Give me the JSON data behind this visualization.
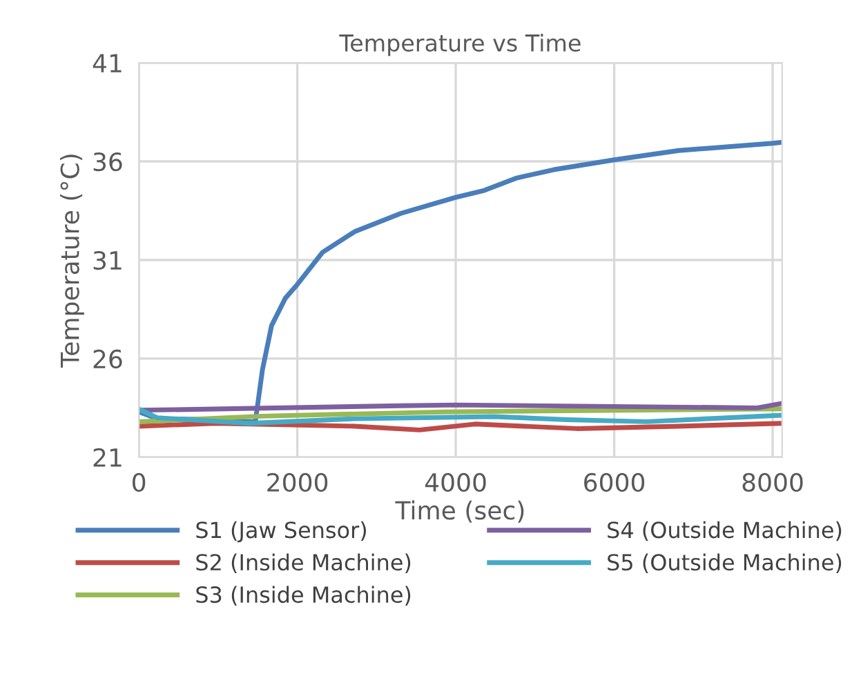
{
  "chart_data": {
    "type": "line",
    "title": "Temperature vs Time",
    "xlabel": "Time (sec)",
    "ylabel": "Temperature (°C)",
    "xlim": [
      0,
      8120
    ],
    "ylim": [
      21,
      41
    ],
    "xticks": [
      0,
      2000,
      4000,
      6000,
      8000
    ],
    "yticks": [
      21,
      26,
      31,
      36,
      41
    ],
    "grid": true,
    "legend": "bottom",
    "marker": "none",
    "line_style": "solid",
    "series": [
      {
        "name": "S1 (Jaw Sensor)",
        "color": "#4a7ebb",
        "x": [
          0,
          230,
          975,
          1383,
          1470,
          1560,
          1675,
          1850,
          2000,
          2318,
          2725,
          3310,
          4000,
          4360,
          4770,
          5236,
          6000,
          6813,
          8000,
          8120
        ],
        "values": [
          23.3,
          22.95,
          22.9,
          22.8,
          22.8,
          25.44,
          27.67,
          29.07,
          29.76,
          31.39,
          32.44,
          33.37,
          34.18,
          34.53,
          35.16,
          35.58,
          36.08,
          36.55,
          36.92,
          36.97
        ]
      },
      {
        "name": "S2 (Inside Machine)",
        "color": "#be4b48",
        "x": [
          0,
          975,
          2727,
          3543,
          4244,
          5528,
          6813,
          8120
        ],
        "values": [
          22.57,
          22.72,
          22.57,
          22.38,
          22.68,
          22.45,
          22.57,
          22.72
        ]
      },
      {
        "name": "S3 (Inside Machine)",
        "color": "#98b954",
        "x": [
          0,
          1559,
          3894,
          8120
        ],
        "values": [
          22.8,
          23.08,
          23.3,
          23.45
        ]
      },
      {
        "name": "S4 (Outside Machine)",
        "color": "#7d60a0",
        "x": [
          0,
          3310,
          4000,
          7806,
          8120
        ],
        "values": [
          23.38,
          23.61,
          23.65,
          23.5,
          23.73
        ]
      },
      {
        "name": "S5 (Outside Machine)",
        "color": "#46aac5",
        "x": [
          0,
          230,
          1383,
          2727,
          4477,
          5411,
          6404,
          8120
        ],
        "values": [
          23.44,
          23.0,
          22.72,
          22.95,
          23.06,
          22.9,
          22.8,
          23.13
        ]
      }
    ]
  }
}
